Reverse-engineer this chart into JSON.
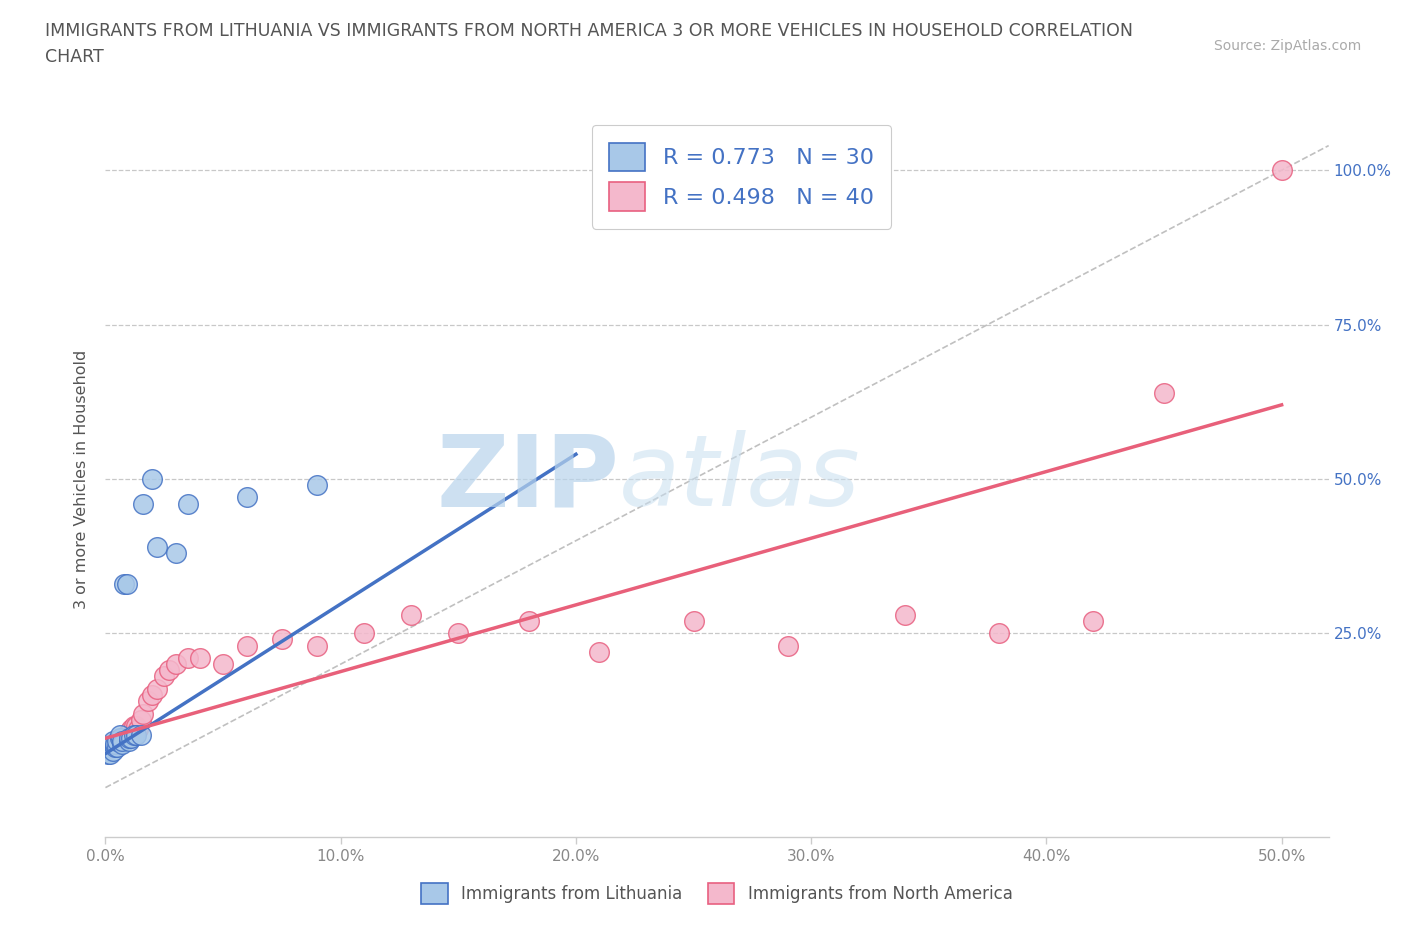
{
  "title_line1": "IMMIGRANTS FROM LITHUANIA VS IMMIGRANTS FROM NORTH AMERICA 3 OR MORE VEHICLES IN HOUSEHOLD CORRELATION",
  "title_line2": "CHART",
  "source_text": "Source: ZipAtlas.com",
  "ylabel_text": "3 or more Vehicles in Household",
  "xlim": [
    0.0,
    0.52
  ],
  "ylim": [
    -0.08,
    1.08
  ],
  "xtick_vals": [
    0.0,
    0.1,
    0.2,
    0.3,
    0.4,
    0.5
  ],
  "xtick_labels": [
    "0.0%",
    "10.0%",
    "20.0%",
    "30.0%",
    "40.0%",
    "50.0%"
  ],
  "ytick_vals": [
    0.25,
    0.5,
    0.75,
    1.0
  ],
  "ytick_labels": [
    "25.0%",
    "50.0%",
    "75.0%",
    "100.0%"
  ],
  "lithuania_fill": "#a8c8e8",
  "lithuania_edge": "#4472c4",
  "na_fill": "#f4b8cc",
  "na_edge": "#e86080",
  "line_lithuania": "#4472c4",
  "line_na": "#e8607a",
  "legend1_text": "R = 0.773   N = 30",
  "legend2_text": "R = 0.498   N = 40",
  "bottom_leg1": "Immigrants from Lithuania",
  "bottom_leg2": "Immigrants from North America",
  "watermark_zip": "ZIP",
  "watermark_atlas": "atlas",
  "scatter_lit_x": [
    0.001,
    0.001,
    0.002,
    0.002,
    0.003,
    0.003,
    0.003,
    0.004,
    0.004,
    0.005,
    0.005,
    0.006,
    0.006,
    0.007,
    0.007,
    0.008,
    0.009,
    0.01,
    0.01,
    0.011,
    0.012,
    0.013,
    0.015,
    0.016,
    0.02,
    0.022,
    0.03,
    0.035,
    0.06,
    0.09
  ],
  "scatter_lit_y": [
    0.06,
    0.055,
    0.065,
    0.055,
    0.06,
    0.07,
    0.075,
    0.065,
    0.07,
    0.065,
    0.075,
    0.08,
    0.085,
    0.07,
    0.075,
    0.33,
    0.33,
    0.075,
    0.08,
    0.08,
    0.085,
    0.085,
    0.085,
    0.46,
    0.5,
    0.39,
    0.38,
    0.46,
    0.47,
    0.49
  ],
  "scatter_na_x": [
    0.001,
    0.002,
    0.003,
    0.004,
    0.005,
    0.006,
    0.007,
    0.008,
    0.009,
    0.01,
    0.011,
    0.012,
    0.013,
    0.014,
    0.015,
    0.016,
    0.018,
    0.02,
    0.022,
    0.025,
    0.027,
    0.03,
    0.035,
    0.04,
    0.05,
    0.06,
    0.075,
    0.09,
    0.11,
    0.13,
    0.15,
    0.18,
    0.21,
    0.25,
    0.29,
    0.34,
    0.38,
    0.42,
    0.45,
    0.5
  ],
  "scatter_na_y": [
    0.06,
    0.065,
    0.07,
    0.065,
    0.075,
    0.075,
    0.08,
    0.08,
    0.085,
    0.09,
    0.095,
    0.1,
    0.1,
    0.095,
    0.11,
    0.12,
    0.14,
    0.15,
    0.16,
    0.18,
    0.19,
    0.2,
    0.21,
    0.21,
    0.2,
    0.23,
    0.24,
    0.23,
    0.25,
    0.28,
    0.25,
    0.27,
    0.22,
    0.27,
    0.23,
    0.28,
    0.25,
    0.27,
    0.64,
    1.0
  ],
  "trendline_lit_x0": 0.0,
  "trendline_lit_y0": 0.055,
  "trendline_lit_x1": 0.2,
  "trendline_lit_y1": 0.54,
  "trendline_na_x0": 0.0,
  "trendline_na_y0": 0.08,
  "trendline_na_x1": 0.5,
  "trendline_na_y1": 0.62
}
